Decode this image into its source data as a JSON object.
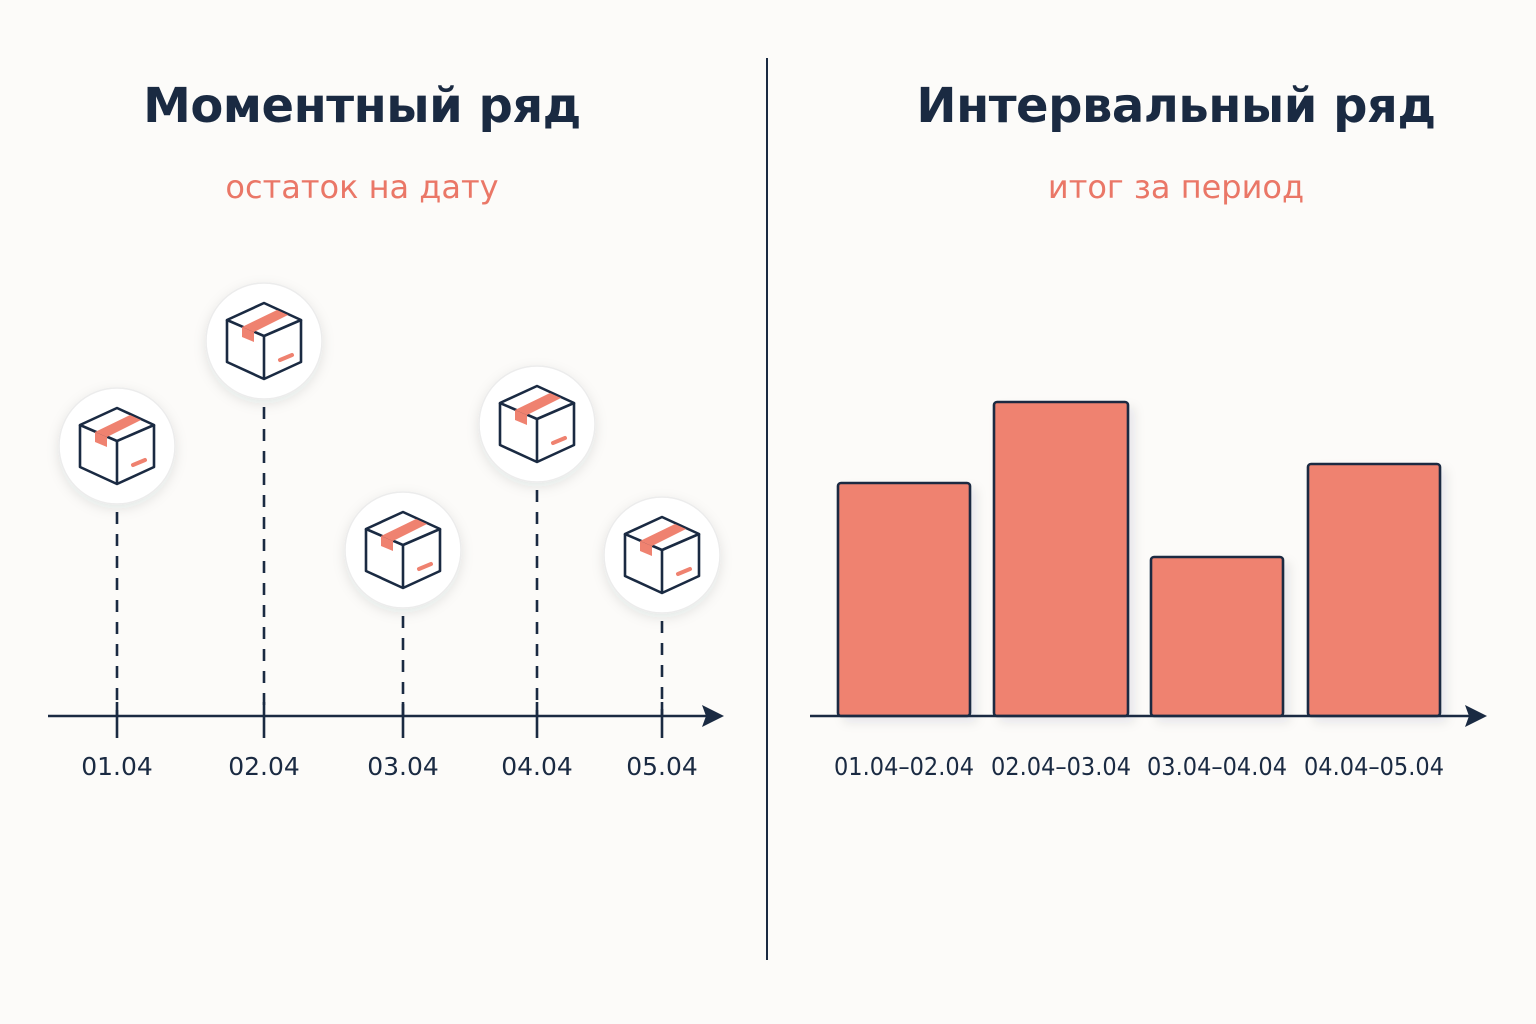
{
  "left": {
    "title": "Моментный ряд",
    "subtitle": "остаток на дату",
    "points": [
      {
        "date": "01.04",
        "level": 0.62,
        "icon": "box-icon"
      },
      {
        "date": "02.04",
        "level": 0.86,
        "icon": "box-icon"
      },
      {
        "date": "03.04",
        "level": 0.38,
        "icon": "box-icon"
      },
      {
        "date": "04.04",
        "level": 0.67,
        "icon": "box-icon"
      },
      {
        "date": "05.04",
        "level": 0.37,
        "icon": "box-icon"
      }
    ]
  },
  "right": {
    "title": "Интервальный ряд",
    "subtitle": "итог за период",
    "bars": [
      {
        "period": "01.04–02.04",
        "value": 0.6
      },
      {
        "period": "02.04–03.04",
        "value": 0.81
      },
      {
        "period": "03.04–04.04",
        "value": 0.41
      },
      {
        "period": "04.04–05.04",
        "value": 0.65
      }
    ]
  },
  "colors": {
    "accent": "#ef8270",
    "ink": "#1a2a42",
    "background": "#fcfbf9"
  }
}
